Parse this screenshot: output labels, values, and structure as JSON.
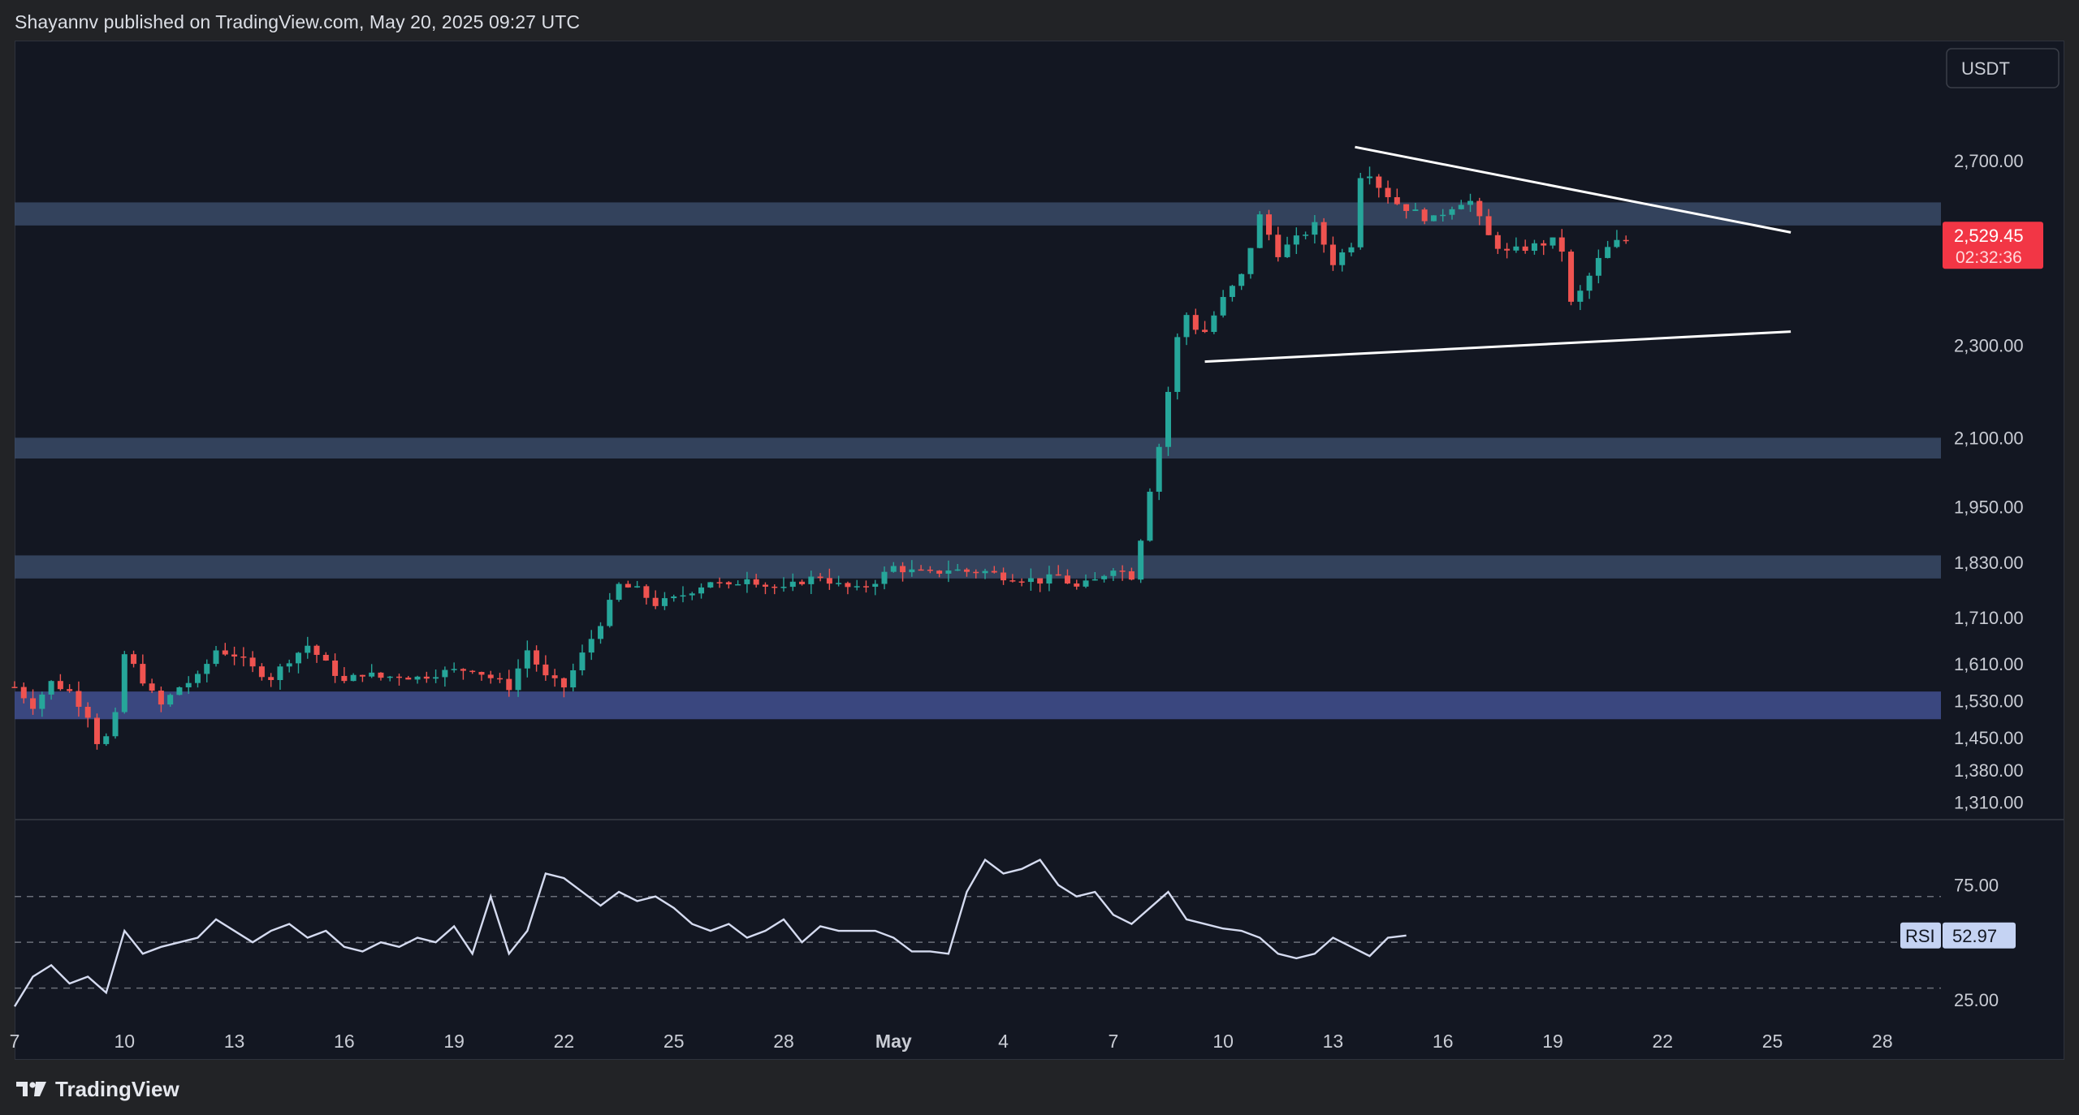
{
  "header": {
    "publish_text": "Shayannv published on TradingView.com, May 20, 2025 09:27 UTC"
  },
  "footer": {
    "brand": "TradingView",
    "logo_icon": "tradingview-logo-icon"
  },
  "colors": {
    "up": "#26a69a",
    "down": "#ef5350",
    "zone": "#3a4a66",
    "zone_strong": "#3c4a85",
    "rsi_line": "#d5dbf0",
    "price_badge": "#f23645"
  },
  "chart_data": [
    {
      "type": "candlestick",
      "title": "",
      "currency_badge": "USDT",
      "y_tick_labels": [
        "2,700.00",
        "2,529.45",
        "2,300.00",
        "2,100.00",
        "1,950.00",
        "1,830.00",
        "1,710.00",
        "1,610.00",
        "1,530.00",
        "1,450.00",
        "1,380.00",
        "1,310.00"
      ],
      "y_ticks": [
        2700,
        2300,
        2100,
        1950,
        1830,
        1710,
        1610,
        1530,
        1450,
        1380,
        1310
      ],
      "ylim": [
        1290,
        2820
      ],
      "x_tick_labels": [
        "7",
        "10",
        "13",
        "16",
        "19",
        "22",
        "25",
        "28",
        "May",
        "4",
        "7",
        "10",
        "13",
        "16",
        "19",
        "22",
        "25",
        "28"
      ],
      "x_tick_days": [
        0,
        3,
        6,
        9,
        12,
        15,
        18,
        21,
        24,
        27,
        30,
        33,
        36,
        39,
        42,
        45,
        48,
        51
      ],
      "xlim_days": [
        0,
        52.6
      ],
      "last_price": {
        "value": 2529.45,
        "label": "2,529.45",
        "countdown": "02:32:36"
      },
      "zones": [
        {
          "low": 2560,
          "high": 2610
        },
        {
          "low": 2055,
          "high": 2100
        },
        {
          "low": 1795,
          "high": 1845
        },
        {
          "low": 1490,
          "high": 1550
        }
      ],
      "trendlines": [
        {
          "name": "upper-resistance",
          "from": {
            "day": 36.6,
            "price": 2730
          },
          "to": {
            "day": 48.5,
            "price": 2545
          }
        },
        {
          "name": "lower-support",
          "from": {
            "day": 32.5,
            "price": 2265
          },
          "to": {
            "day": 48.5,
            "price": 2330
          }
        }
      ],
      "price_path": [
        [
          0,
          1560
        ],
        [
          0.5,
          1520
        ],
        [
          1,
          1570
        ],
        [
          1.5,
          1550
        ],
        [
          2,
          1500
        ],
        [
          2.3,
          1430
        ],
        [
          2.7,
          1470
        ],
        [
          3,
          1630
        ],
        [
          3.3,
          1600
        ],
        [
          3.7,
          1550
        ],
        [
          4,
          1520
        ],
        [
          4.5,
          1560
        ],
        [
          5,
          1580
        ],
        [
          5.5,
          1640
        ],
        [
          6,
          1630
        ],
        [
          6.5,
          1600
        ],
        [
          7,
          1580
        ],
        [
          7.5,
          1620
        ],
        [
          8,
          1650
        ],
        [
          8.5,
          1610
        ],
        [
          9,
          1570
        ],
        [
          9.5,
          1590
        ],
        [
          10,
          1580
        ],
        [
          10.5,
          1585
        ],
        [
          11,
          1580
        ],
        [
          11.5,
          1590
        ],
        [
          12,
          1595
        ],
        [
          12.5,
          1600
        ],
        [
          13,
          1580
        ],
        [
          13.5,
          1560
        ],
        [
          14,
          1640
        ],
        [
          14.5,
          1580
        ],
        [
          15,
          1560
        ],
        [
          15.5,
          1630
        ],
        [
          16,
          1700
        ],
        [
          16.5,
          1780
        ],
        [
          17,
          1770
        ],
        [
          17.5,
          1740
        ],
        [
          18,
          1750
        ],
        [
          18.5,
          1770
        ],
        [
          19,
          1790
        ],
        [
          19.5,
          1775
        ],
        [
          20,
          1800
        ],
        [
          20.5,
          1780
        ],
        [
          21,
          1770
        ],
        [
          21.5,
          1790
        ],
        [
          22,
          1800
        ],
        [
          22.5,
          1780
        ],
        [
          23,
          1770
        ],
        [
          23.5,
          1790
        ],
        [
          24,
          1820
        ],
        [
          24.5,
          1810
        ],
        [
          25,
          1805
        ],
        [
          25.5,
          1815
        ],
        [
          26,
          1810
        ],
        [
          26.5,
          1810
        ],
        [
          27,
          1800
        ],
        [
          27.5,
          1795
        ],
        [
          28,
          1790
        ],
        [
          28.5,
          1800
        ],
        [
          29,
          1775
        ],
        [
          29.5,
          1790
        ],
        [
          30,
          1820
        ],
        [
          30.5,
          1800
        ],
        [
          30.8,
          1900
        ],
        [
          31,
          1990
        ],
        [
          31.3,
          2100
        ],
        [
          31.6,
          2250
        ],
        [
          31.9,
          2380
        ],
        [
          32.2,
          2340
        ],
        [
          32.5,
          2330
        ],
        [
          33,
          2400
        ],
        [
          33.5,
          2450
        ],
        [
          34,
          2580
        ],
        [
          34.5,
          2500
        ],
        [
          35,
          2530
        ],
        [
          35.5,
          2560
        ],
        [
          36,
          2480
        ],
        [
          36.5,
          2520
        ],
        [
          36.8,
          2700
        ],
        [
          37.2,
          2650
        ],
        [
          37.7,
          2610
        ],
        [
          38.2,
          2590
        ],
        [
          38.7,
          2570
        ],
        [
          39.2,
          2600
        ],
        [
          39.7,
          2620
        ],
        [
          40.2,
          2540
        ],
        [
          40.7,
          2500
        ],
        [
          41.2,
          2510
        ],
        [
          41.7,
          2520
        ],
        [
          42.2,
          2530
        ],
        [
          42.5,
          2390
        ],
        [
          42.8,
          2420
        ],
        [
          43.2,
          2480
        ],
        [
          43.6,
          2520
        ],
        [
          44,
          2529
        ]
      ]
    },
    {
      "type": "line",
      "name": "RSI",
      "value_label": "52.97",
      "y_tick_labels": [
        "75.00",
        "25.00"
      ],
      "levels": [
        70,
        50,
        30
      ],
      "ylim": [
        15,
        100
      ],
      "path": [
        [
          0,
          22
        ],
        [
          0.5,
          35
        ],
        [
          1,
          40
        ],
        [
          1.5,
          32
        ],
        [
          2,
          35
        ],
        [
          2.5,
          28
        ],
        [
          3,
          55
        ],
        [
          3.5,
          45
        ],
        [
          4,
          48
        ],
        [
          4.5,
          50
        ],
        [
          5,
          52
        ],
        [
          5.5,
          60
        ],
        [
          6,
          55
        ],
        [
          6.5,
          50
        ],
        [
          7,
          55
        ],
        [
          7.5,
          58
        ],
        [
          8,
          52
        ],
        [
          8.5,
          55
        ],
        [
          9,
          48
        ],
        [
          9.5,
          46
        ],
        [
          10,
          50
        ],
        [
          10.5,
          48
        ],
        [
          11,
          52
        ],
        [
          11.5,
          50
        ],
        [
          12,
          57
        ],
        [
          12.5,
          45
        ],
        [
          13,
          70
        ],
        [
          13.5,
          45
        ],
        [
          14,
          55
        ],
        [
          14.5,
          80
        ],
        [
          15,
          78
        ],
        [
          15.5,
          72
        ],
        [
          16,
          66
        ],
        [
          16.5,
          72
        ],
        [
          17,
          68
        ],
        [
          17.5,
          70
        ],
        [
          18,
          65
        ],
        [
          18.5,
          58
        ],
        [
          19,
          55
        ],
        [
          19.5,
          58
        ],
        [
          20,
          52
        ],
        [
          20.5,
          55
        ],
        [
          21,
          60
        ],
        [
          21.5,
          50
        ],
        [
          22,
          57
        ],
        [
          22.5,
          55
        ],
        [
          23,
          55
        ],
        [
          23.5,
          55
        ],
        [
          24,
          52
        ],
        [
          24.5,
          46
        ],
        [
          25,
          46
        ],
        [
          25.5,
          45
        ],
        [
          26,
          72
        ],
        [
          26.5,
          86
        ],
        [
          27,
          80
        ],
        [
          27.5,
          82
        ],
        [
          28,
          86
        ],
        [
          28.5,
          75
        ],
        [
          29,
          70
        ],
        [
          29.5,
          72
        ],
        [
          30,
          62
        ],
        [
          30.5,
          58
        ],
        [
          31,
          65
        ],
        [
          31.5,
          72
        ],
        [
          32,
          60
        ],
        [
          32.5,
          58
        ],
        [
          33,
          56
        ],
        [
          33.5,
          55
        ],
        [
          34,
          52
        ],
        [
          34.5,
          45
        ],
        [
          35,
          43
        ],
        [
          35.5,
          45
        ],
        [
          36,
          52
        ],
        [
          36.5,
          48
        ],
        [
          37,
          44
        ],
        [
          37.5,
          52
        ],
        [
          38,
          52.97
        ]
      ]
    }
  ]
}
